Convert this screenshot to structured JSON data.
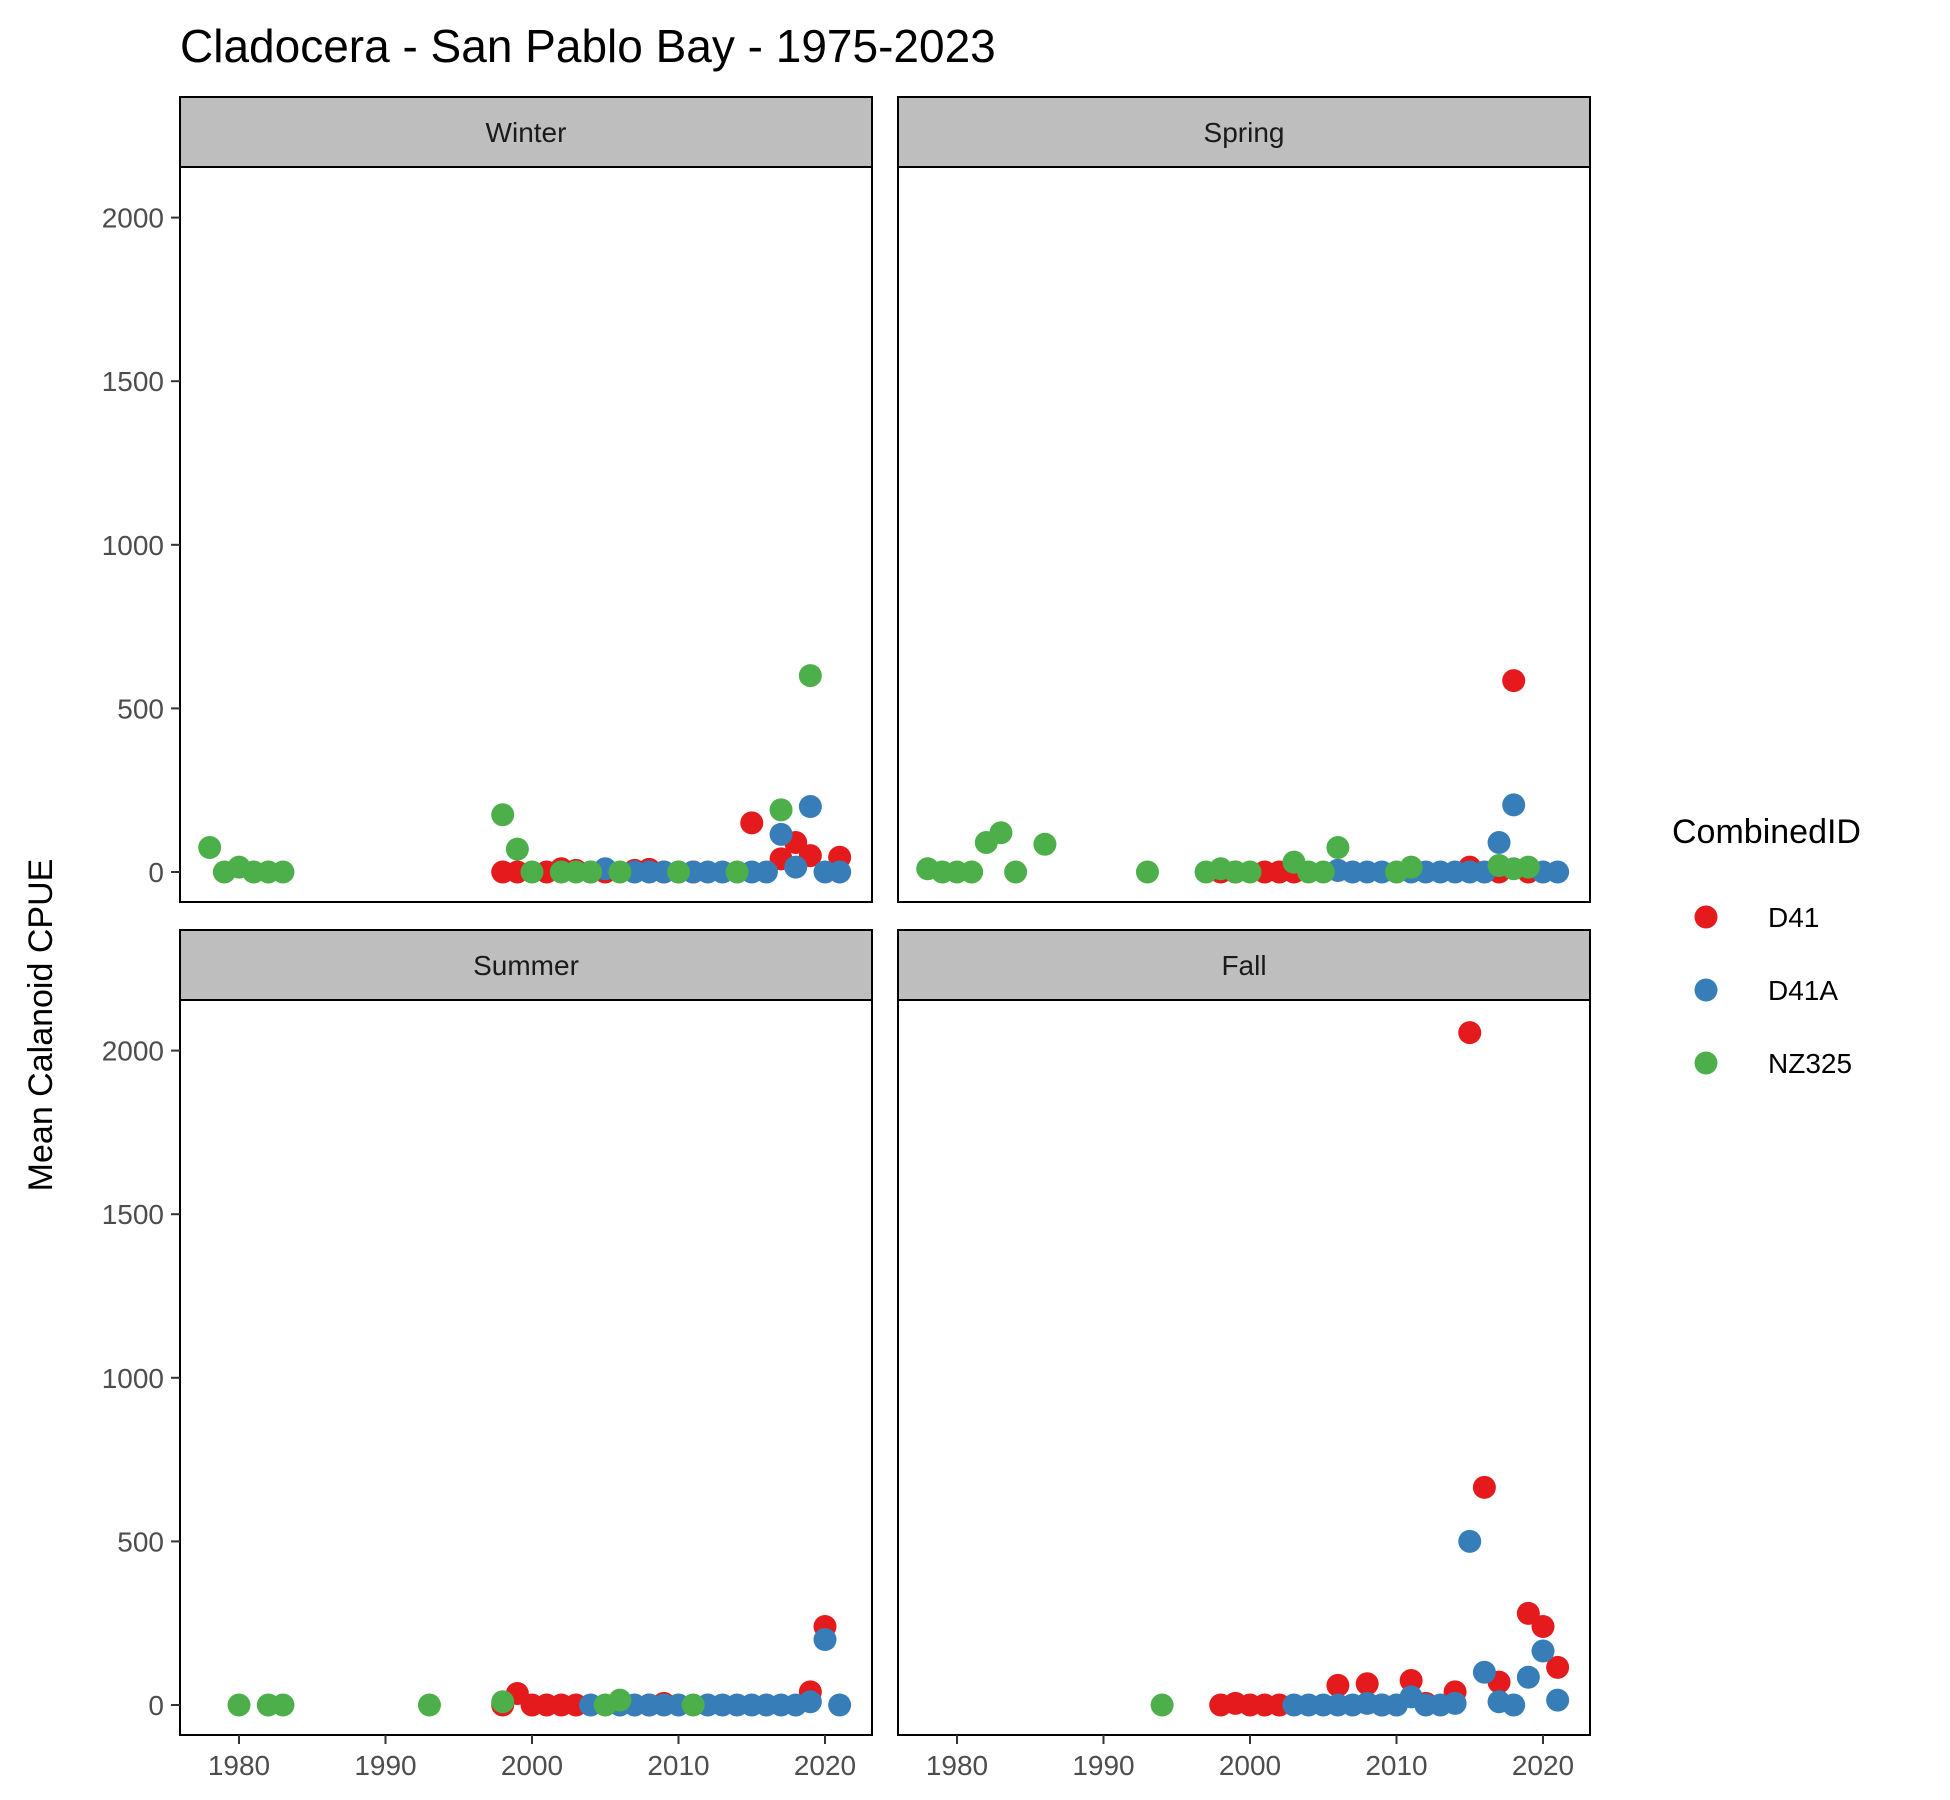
{
  "chart_data": {
    "type": "scatter",
    "title": "Cladocera - San Pablo Bay - 1975-2023",
    "ylabel": "Mean Calanoid CPUE",
    "xlabel": "",
    "xlim": [
      1976,
      2023
    ],
    "ylim": [
      -90,
      2150
    ],
    "x_ticks": [
      1980,
      1990,
      2000,
      2010,
      2020
    ],
    "y_ticks": [
      0,
      500,
      1000,
      1500,
      2000
    ],
    "grid": false,
    "legend": {
      "title": "CombinedID",
      "placement": "right",
      "entries": [
        {
          "name": "D41",
          "color": "#E41A1C"
        },
        {
          "name": "D41A",
          "color": "#377EB8"
        },
        {
          "name": "NZ325",
          "color": "#4DAF4A"
        }
      ]
    },
    "facets": [
      {
        "name": "Winter",
        "series": [
          {
            "name": "D41",
            "points": [
              [
                1998,
                0
              ],
              [
                1999,
                0
              ],
              [
                2001,
                0
              ],
              [
                2002,
                10
              ],
              [
                2003,
                5
              ],
              [
                2005,
                0
              ],
              [
                2007,
                5
              ],
              [
                2008,
                8
              ],
              [
                2009,
                0
              ],
              [
                2011,
                0
              ],
              [
                2015,
                150
              ],
              [
                2017,
                40
              ],
              [
                2018,
                90
              ],
              [
                2019,
                50
              ],
              [
                2021,
                45
              ]
            ]
          },
          {
            "name": "D41A",
            "points": [
              [
                2004,
                0
              ],
              [
                2005,
                10
              ],
              [
                2007,
                0
              ],
              [
                2008,
                0
              ],
              [
                2009,
                0
              ],
              [
                2010,
                0
              ],
              [
                2011,
                0
              ],
              [
                2012,
                0
              ],
              [
                2013,
                0
              ],
              [
                2015,
                0
              ],
              [
                2016,
                0
              ],
              [
                2017,
                115
              ],
              [
                2018,
                15
              ],
              [
                2019,
                200
              ],
              [
                2020,
                0
              ],
              [
                2021,
                0
              ]
            ]
          },
          {
            "name": "NZ325",
            "points": [
              [
                1978,
                75
              ],
              [
                1979,
                0
              ],
              [
                1980,
                15
              ],
              [
                1981,
                0
              ],
              [
                1982,
                0
              ],
              [
                1983,
                0
              ],
              [
                1998,
                175
              ],
              [
                1999,
                70
              ],
              [
                2000,
                0
              ],
              [
                2002,
                0
              ],
              [
                2003,
                0
              ],
              [
                2004,
                0
              ],
              [
                2006,
                0
              ],
              [
                2010,
                0
              ],
              [
                2014,
                0
              ],
              [
                2017,
                190
              ],
              [
                2019,
                600
              ]
            ]
          }
        ]
      },
      {
        "name": "Spring",
        "series": [
          {
            "name": "D41",
            "points": [
              [
                1998,
                0
              ],
              [
                1999,
                0
              ],
              [
                2001,
                0
              ],
              [
                2002,
                0
              ],
              [
                2003,
                0
              ],
              [
                2006,
                5
              ],
              [
                2015,
                15
              ],
              [
                2017,
                0
              ],
              [
                2018,
                585
              ],
              [
                2019,
                0
              ]
            ]
          },
          {
            "name": "D41A",
            "points": [
              [
                2006,
                5
              ],
              [
                2007,
                0
              ],
              [
                2008,
                0
              ],
              [
                2009,
                0
              ],
              [
                2011,
                0
              ],
              [
                2012,
                0
              ],
              [
                2013,
                0
              ],
              [
                2014,
                0
              ],
              [
                2015,
                0
              ],
              [
                2016,
                0
              ],
              [
                2017,
                90
              ],
              [
                2018,
                205
              ],
              [
                2020,
                0
              ],
              [
                2021,
                0
              ]
            ]
          },
          {
            "name": "NZ325",
            "points": [
              [
                1978,
                10
              ],
              [
                1979,
                0
              ],
              [
                1980,
                0
              ],
              [
                1981,
                0
              ],
              [
                1982,
                90
              ],
              [
                1983,
                120
              ],
              [
                1984,
                0
              ],
              [
                1986,
                85
              ],
              [
                1993,
                0
              ],
              [
                1997,
                0
              ],
              [
                1998,
                10
              ],
              [
                1999,
                0
              ],
              [
                2000,
                0
              ],
              [
                2003,
                30
              ],
              [
                2004,
                0
              ],
              [
                2005,
                0
              ],
              [
                2006,
                75
              ],
              [
                2010,
                0
              ],
              [
                2011,
                15
              ],
              [
                2017,
                20
              ],
              [
                2018,
                10
              ],
              [
                2019,
                15
              ]
            ]
          }
        ]
      },
      {
        "name": "Summer",
        "series": [
          {
            "name": "D41",
            "points": [
              [
                1998,
                0
              ],
              [
                1999,
                35
              ],
              [
                2000,
                0
              ],
              [
                2001,
                0
              ],
              [
                2002,
                0
              ],
              [
                2003,
                0
              ],
              [
                2008,
                0
              ],
              [
                2009,
                5
              ],
              [
                2019,
                40
              ],
              [
                2020,
                240
              ]
            ]
          },
          {
            "name": "D41A",
            "points": [
              [
                2004,
                0
              ],
              [
                2006,
                0
              ],
              [
                2007,
                0
              ],
              [
                2008,
                0
              ],
              [
                2009,
                0
              ],
              [
                2010,
                0
              ],
              [
                2012,
                0
              ],
              [
                2013,
                0
              ],
              [
                2014,
                0
              ],
              [
                2015,
                0
              ],
              [
                2016,
                0
              ],
              [
                2017,
                0
              ],
              [
                2018,
                0
              ],
              [
                2019,
                10
              ],
              [
                2020,
                200
              ],
              [
                2021,
                0
              ]
            ]
          },
          {
            "name": "NZ325",
            "points": [
              [
                1980,
                0
              ],
              [
                1982,
                0
              ],
              [
                1983,
                0
              ],
              [
                1993,
                0
              ],
              [
                1998,
                10
              ],
              [
                2005,
                0
              ],
              [
                2006,
                15
              ],
              [
                2011,
                0
              ]
            ]
          }
        ]
      },
      {
        "name": "Fall",
        "series": [
          {
            "name": "D41",
            "points": [
              [
                1998,
                0
              ],
              [
                1999,
                5
              ],
              [
                2000,
                0
              ],
              [
                2001,
                0
              ],
              [
                2002,
                0
              ],
              [
                2006,
                60
              ],
              [
                2008,
                65
              ],
              [
                2009,
                0
              ],
              [
                2011,
                75
              ],
              [
                2012,
                5
              ],
              [
                2014,
                40
              ],
              [
                2015,
                2055
              ],
              [
                2016,
                665
              ],
              [
                2017,
                70
              ],
              [
                2019,
                280
              ],
              [
                2020,
                240
              ],
              [
                2021,
                115
              ]
            ]
          },
          {
            "name": "D41A",
            "points": [
              [
                2003,
                0
              ],
              [
                2004,
                0
              ],
              [
                2005,
                0
              ],
              [
                2006,
                0
              ],
              [
                2007,
                0
              ],
              [
                2008,
                5
              ],
              [
                2009,
                0
              ],
              [
                2010,
                0
              ],
              [
                2011,
                25
              ],
              [
                2012,
                0
              ],
              [
                2013,
                0
              ],
              [
                2014,
                5
              ],
              [
                2015,
                500
              ],
              [
                2016,
                100
              ],
              [
                2017,
                10
              ],
              [
                2018,
                0
              ],
              [
                2019,
                85
              ],
              [
                2020,
                165
              ],
              [
                2021,
                15
              ]
            ]
          },
          {
            "name": "NZ325",
            "points": [
              [
                1994,
                0
              ]
            ]
          }
        ]
      }
    ]
  }
}
